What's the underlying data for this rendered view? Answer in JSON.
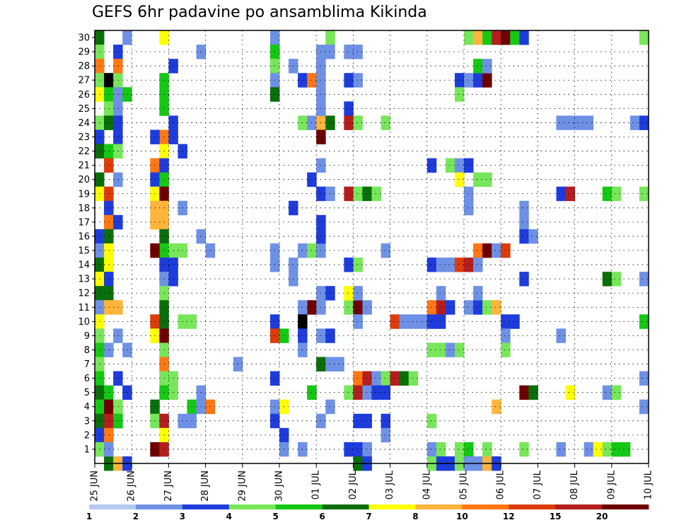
{
  "chart_data": {
    "type": "heatmap",
    "title": "GEFS 6hr padavine po ansamblima Kikinda",
    "xlabel": "",
    "ylabel": "",
    "x_tick_labels": [
      "25 JUN",
      "26 JUN",
      "27 JUN",
      "28 JUN",
      "29 JUN",
      "30 JUN",
      "01 JUL",
      "02 JUL",
      "03 JUL",
      "04 JUL",
      "05 JUL",
      "06 JUL",
      "07 JUL",
      "08 JUL",
      "09 JUL",
      "10 JUL"
    ],
    "y_ticks": [
      1,
      2,
      3,
      4,
      5,
      6,
      7,
      8,
      9,
      10,
      11,
      12,
      13,
      14,
      15,
      16,
      17,
      18,
      19,
      20,
      21,
      22,
      23,
      24,
      25,
      26,
      27,
      28,
      29,
      30
    ],
    "x_range": [
      0,
      60
    ],
    "y_range": [
      0,
      30
    ],
    "grid": true,
    "legend": {
      "position": "bottom",
      "labels": [
        "1",
        "2",
        "3",
        "4",
        "5",
        "6",
        "7",
        "8",
        "10",
        "12",
        "15",
        "20"
      ],
      "colors": [
        "#b4c8f0",
        "#6e91e6",
        "#1e3cdc",
        "#78e65a",
        "#14c814",
        "#0a6e0a",
        "#ffff00",
        "#ffb43c",
        "#ff7814",
        "#dc3c0a",
        "#b41e1e",
        "#6e0000"
      ]
    },
    "cells": [
      [
        0,
        30,
        5
      ],
      [
        0,
        29,
        3
      ],
      [
        0,
        28,
        8
      ],
      [
        0,
        27,
        3
      ],
      [
        0,
        26,
        6
      ],
      [
        0,
        24,
        3
      ],
      [
        0,
        23,
        2
      ],
      [
        0,
        22,
        5
      ],
      [
        0,
        20,
        5
      ],
      [
        0,
        19,
        6
      ],
      [
        0,
        16,
        2
      ],
      [
        0,
        15,
        1
      ],
      [
        0,
        14,
        5
      ],
      [
        0,
        13,
        6
      ],
      [
        0,
        12,
        5
      ],
      [
        0,
        11,
        1
      ],
      [
        0,
        10,
        6
      ],
      [
        0,
        9,
        3
      ],
      [
        0,
        8,
        4
      ],
      [
        0,
        7,
        3
      ],
      [
        0,
        6,
        4
      ],
      [
        0,
        5,
        5
      ],
      [
        0,
        4,
        4
      ],
      [
        0,
        3,
        5
      ],
      [
        0,
        2,
        2
      ],
      [
        0,
        1,
        3
      ],
      [
        1,
        0,
        5
      ],
      [
        2,
        0,
        7
      ],
      [
        2,
        3,
        2
      ],
      [
        1,
        27,
        12
      ],
      [
        2,
        27,
        3
      ],
      [
        1,
        26,
        4
      ],
      [
        2,
        26,
        1
      ],
      [
        1,
        25,
        3
      ],
      [
        2,
        25,
        1
      ],
      [
        1,
        24,
        5
      ],
      [
        2,
        24,
        2
      ],
      [
        2,
        23,
        2
      ],
      [
        1,
        22,
        4
      ],
      [
        2,
        22,
        3
      ],
      [
        1,
        21,
        9
      ],
      [
        2,
        20,
        1
      ],
      [
        1,
        19,
        9
      ],
      [
        1,
        18,
        2
      ],
      [
        1,
        17,
        8
      ],
      [
        2,
        17,
        2
      ],
      [
        1,
        16,
        5
      ],
      [
        1,
        15,
        6
      ],
      [
        1,
        14,
        6
      ],
      [
        1,
        13,
        2
      ],
      [
        1,
        12,
        5
      ],
      [
        1,
        11,
        7
      ],
      [
        2,
        11,
        7
      ],
      [
        2,
        9,
        1
      ],
      [
        1,
        8,
        1
      ],
      [
        1,
        5,
        4
      ],
      [
        1,
        4,
        11
      ],
      [
        2,
        4,
        3
      ],
      [
        1,
        3,
        10
      ],
      [
        2,
        3,
        4
      ],
      [
        1,
        2,
        8
      ],
      [
        1,
        1,
        1
      ],
      [
        2,
        29,
        2
      ],
      [
        2,
        28,
        8
      ],
      [
        2,
        6,
        2
      ],
      [
        3,
        30,
        1
      ],
      [
        3,
        26,
        4
      ],
      [
        3,
        8,
        1
      ],
      [
        3,
        5,
        2
      ],
      [
        3,
        0,
        2
      ],
      [
        7,
        30,
        6
      ],
      [
        7,
        27,
        4
      ],
      [
        7,
        26,
        4
      ],
      [
        7,
        25,
        4
      ],
      [
        7,
        23,
        8
      ],
      [
        6,
        23,
        2
      ],
      [
        7,
        22,
        6
      ],
      [
        6,
        21,
        8
      ],
      [
        7,
        21,
        2
      ],
      [
        6,
        20,
        2
      ],
      [
        7,
        20,
        4
      ],
      [
        6,
        19,
        6
      ],
      [
        7,
        19,
        11
      ],
      [
        6,
        18,
        7
      ],
      [
        7,
        18,
        7
      ],
      [
        6,
        17,
        7
      ],
      [
        7,
        17,
        7
      ],
      [
        7,
        16,
        5
      ],
      [
        7,
        15,
        4
      ],
      [
        6,
        15,
        11
      ],
      [
        7,
        14,
        2
      ],
      [
        7,
        13,
        1
      ],
      [
        7,
        12,
        3
      ],
      [
        7,
        11,
        5
      ],
      [
        6,
        10,
        9
      ],
      [
        7,
        10,
        5
      ],
      [
        6,
        9,
        6
      ],
      [
        7,
        9,
        11
      ],
      [
        7,
        8,
        3
      ],
      [
        7,
        7,
        8
      ],
      [
        7,
        6,
        3
      ],
      [
        8,
        6,
        3
      ],
      [
        7,
        5,
        4
      ],
      [
        8,
        5,
        3
      ],
      [
        6,
        4,
        5
      ],
      [
        6,
        3,
        3
      ],
      [
        7,
        3,
        10
      ],
      [
        7,
        2,
        6
      ],
      [
        6,
        1,
        11
      ],
      [
        7,
        1,
        10
      ],
      [
        8,
        28,
        2
      ],
      [
        8,
        24,
        2
      ],
      [
        8,
        23,
        2
      ],
      [
        9,
        22,
        2
      ],
      [
        9,
        18,
        1
      ],
      [
        8,
        15,
        3
      ],
      [
        9,
        15,
        3
      ],
      [
        8,
        14,
        2
      ],
      [
        8,
        13,
        2
      ],
      [
        9,
        10,
        3
      ],
      [
        10,
        10,
        3
      ],
      [
        10,
        4,
        4
      ],
      [
        11,
        4,
        6
      ],
      [
        9,
        3,
        1
      ],
      [
        10,
        3,
        1
      ],
      [
        11,
        29,
        1
      ],
      [
        11,
        16,
        1
      ],
      [
        12,
        15,
        1
      ],
      [
        11,
        5,
        1
      ],
      [
        11,
        4,
        1
      ],
      [
        12,
        4,
        8
      ],
      [
        15,
        7,
        1
      ],
      [
        19,
        30,
        1
      ],
      [
        19,
        29,
        4
      ],
      [
        19,
        28,
        3
      ],
      [
        19,
        27,
        1
      ],
      [
        19,
        26,
        5
      ],
      [
        19,
        15,
        1
      ],
      [
        19,
        14,
        1
      ],
      [
        19,
        10,
        2
      ],
      [
        19,
        9,
        9
      ],
      [
        20,
        9,
        4
      ],
      [
        19,
        6,
        2
      ],
      [
        19,
        4,
        1
      ],
      [
        20,
        4,
        6
      ],
      [
        19,
        3,
        2
      ],
      [
        20,
        2,
        2
      ],
      [
        20,
        1,
        1
      ],
      [
        21,
        28,
        1
      ],
      [
        21,
        18,
        2
      ],
      [
        21,
        14,
        1
      ],
      [
        21,
        13,
        1
      ],
      [
        22,
        27,
        2
      ],
      [
        23,
        27,
        8
      ],
      [
        22,
        24,
        3
      ],
      [
        23,
        24,
        1
      ],
      [
        24,
        24,
        7
      ],
      [
        25,
        24,
        5
      ],
      [
        23,
        20,
        2
      ],
      [
        22,
        15,
        1
      ],
      [
        23,
        15,
        3
      ],
      [
        24,
        15,
        1
      ],
      [
        23,
        11,
        11
      ],
      [
        22,
        11,
        1
      ],
      [
        22,
        10,
        12
      ],
      [
        22,
        9,
        2
      ],
      [
        22,
        8,
        1
      ],
      [
        23,
        5,
        4
      ],
      [
        22,
        1,
        1
      ],
      [
        24,
        29,
        1
      ],
      [
        24,
        28,
        1
      ],
      [
        24,
        27,
        1
      ],
      [
        24,
        26,
        1
      ],
      [
        24,
        25,
        1
      ],
      [
        24,
        23,
        11
      ],
      [
        24,
        21,
        1
      ],
      [
        24,
        19,
        2
      ],
      [
        24,
        17,
        2
      ],
      [
        24,
        16,
        2
      ],
      [
        24,
        12,
        1
      ],
      [
        24,
        11,
        1
      ],
      [
        24,
        9,
        1
      ],
      [
        24,
        3,
        1
      ],
      [
        24,
        7,
        5
      ],
      [
        25,
        7,
        1
      ],
      [
        26,
        7,
        1
      ],
      [
        25,
        30,
        3
      ],
      [
        25,
        29,
        1
      ],
      [
        25,
        19,
        1
      ],
      [
        25,
        12,
        2
      ],
      [
        25,
        4,
        1
      ],
      [
        25,
        9,
        2
      ],
      [
        27,
        29,
        1
      ],
      [
        28,
        29,
        1
      ],
      [
        27,
        27,
        2
      ],
      [
        28,
        27,
        1
      ],
      [
        27,
        25,
        2
      ],
      [
        27,
        24,
        10
      ],
      [
        28,
        24,
        3
      ],
      [
        27,
        19,
        10
      ],
      [
        28,
        19,
        3
      ],
      [
        29,
        19,
        5
      ],
      [
        30,
        19,
        3
      ],
      [
        27,
        14,
        2
      ],
      [
        28,
        14,
        3
      ],
      [
        27,
        11,
        3
      ],
      [
        28,
        11,
        11
      ],
      [
        29,
        11,
        1
      ],
      [
        28,
        12,
        1
      ],
      [
        27,
        12,
        6
      ],
      [
        28,
        10,
        1
      ],
      [
        28,
        6,
        8
      ],
      [
        29,
        6,
        10
      ],
      [
        30,
        6,
        1
      ],
      [
        31,
        6,
        3
      ],
      [
        32,
        6,
        10
      ],
      [
        33,
        6,
        5
      ],
      [
        34,
        6,
        3
      ],
      [
        27,
        5,
        3
      ],
      [
        28,
        5,
        10
      ],
      [
        29,
        5,
        1
      ],
      [
        30,
        5,
        2
      ],
      [
        31,
        5,
        2
      ],
      [
        27,
        1,
        2
      ],
      [
        28,
        1,
        2
      ],
      [
        29,
        1,
        1
      ],
      [
        28,
        3,
        2
      ],
      [
        29,
        3,
        2
      ],
      [
        28,
        0,
        5
      ],
      [
        29,
        0,
        2
      ],
      [
        31,
        24,
        3
      ],
      [
        31,
        15,
        1
      ],
      [
        32,
        10,
        9
      ],
      [
        33,
        10,
        1
      ],
      [
        31,
        3,
        2
      ],
      [
        31,
        2,
        1
      ],
      [
        34,
        10,
        1
      ],
      [
        35,
        10,
        1
      ],
      [
        36,
        14,
        2
      ],
      [
        37,
        14,
        1
      ],
      [
        38,
        14,
        1
      ],
      [
        39,
        14,
        9
      ],
      [
        40,
        14,
        10
      ],
      [
        36,
        3,
        3
      ],
      [
        36,
        1,
        1
      ],
      [
        37,
        1,
        3
      ],
      [
        37,
        8,
        3
      ],
      [
        36,
        8,
        3
      ],
      [
        38,
        8,
        1
      ],
      [
        36,
        11,
        8
      ],
      [
        37,
        11,
        10
      ],
      [
        38,
        11,
        2
      ],
      [
        36,
        10,
        2
      ],
      [
        37,
        10,
        2
      ],
      [
        36,
        21,
        2
      ],
      [
        38,
        21,
        3
      ],
      [
        37,
        12,
        1
      ],
      [
        36,
        0,
        3
      ],
      [
        37,
        0,
        2
      ],
      [
        38,
        0,
        2
      ],
      [
        39,
        0,
        3
      ],
      [
        40,
        30,
        3
      ],
      [
        41,
        30,
        7
      ],
      [
        42,
        30,
        4
      ],
      [
        43,
        30,
        10
      ],
      [
        44,
        30,
        11
      ],
      [
        45,
        30,
        4
      ],
      [
        46,
        30,
        2
      ],
      [
        39,
        27,
        2
      ],
      [
        40,
        27,
        1
      ],
      [
        41,
        27,
        2
      ],
      [
        42,
        27,
        11
      ],
      [
        39,
        26,
        3
      ],
      [
        41,
        28,
        4
      ],
      [
        42,
        28,
        1
      ],
      [
        39,
        21,
        1
      ],
      [
        40,
        21,
        2
      ],
      [
        41,
        20,
        3
      ],
      [
        42,
        20,
        3
      ],
      [
        39,
        20,
        6
      ],
      [
        40,
        18,
        1
      ],
      [
        41,
        15,
        8
      ],
      [
        42,
        15,
        11
      ],
      [
        43,
        15,
        1
      ],
      [
        44,
        15,
        9
      ],
      [
        41,
        14,
        1
      ],
      [
        40,
        11,
        1
      ],
      [
        41,
        11,
        2
      ],
      [
        42,
        11,
        3
      ],
      [
        43,
        11,
        7
      ],
      [
        41,
        12,
        1
      ],
      [
        44,
        10,
        2
      ],
      [
        45,
        10,
        2
      ],
      [
        44,
        9,
        1
      ],
      [
        39,
        8,
        3
      ],
      [
        44,
        8,
        3
      ],
      [
        43,
        4,
        7
      ],
      [
        39,
        1,
        3
      ],
      [
        40,
        1,
        4
      ],
      [
        42,
        1,
        3
      ],
      [
        40,
        0,
        1
      ],
      [
        41,
        0,
        1
      ],
      [
        42,
        0,
        7
      ],
      [
        43,
        0,
        2
      ],
      [
        40,
        19,
        1
      ],
      [
        46,
        18,
        1
      ],
      [
        46,
        17,
        1
      ],
      [
        46,
        16,
        2
      ],
      [
        47,
        16,
        1
      ],
      [
        46,
        13,
        2
      ],
      [
        46,
        1,
        3
      ],
      [
        46,
        5,
        11
      ],
      [
        47,
        5,
        5
      ],
      [
        50,
        24,
        1
      ],
      [
        50,
        19,
        2
      ],
      [
        51,
        19,
        10
      ],
      [
        50,
        9,
        1
      ],
      [
        50,
        1,
        1
      ],
      [
        51,
        5,
        6
      ],
      [
        51,
        24,
        1
      ],
      [
        52,
        24,
        1
      ],
      [
        53,
        24,
        1
      ],
      [
        53,
        1,
        1
      ],
      [
        54,
        1,
        6
      ],
      [
        55,
        1,
        3
      ],
      [
        56,
        1,
        4
      ],
      [
        57,
        1,
        4
      ],
      [
        55,
        19,
        4
      ],
      [
        56,
        19,
        3
      ],
      [
        55,
        13,
        5
      ],
      [
        56,
        13,
        3
      ],
      [
        55,
        5,
        1
      ],
      [
        56,
        5,
        3
      ],
      [
        59,
        30,
        3
      ],
      [
        58,
        24,
        1
      ],
      [
        59,
        24,
        2
      ],
      [
        59,
        19,
        3
      ],
      [
        59,
        13,
        1
      ],
      [
        59,
        10,
        4
      ],
      [
        59,
        6,
        1
      ],
      [
        59,
        4,
        1
      ]
    ]
  }
}
